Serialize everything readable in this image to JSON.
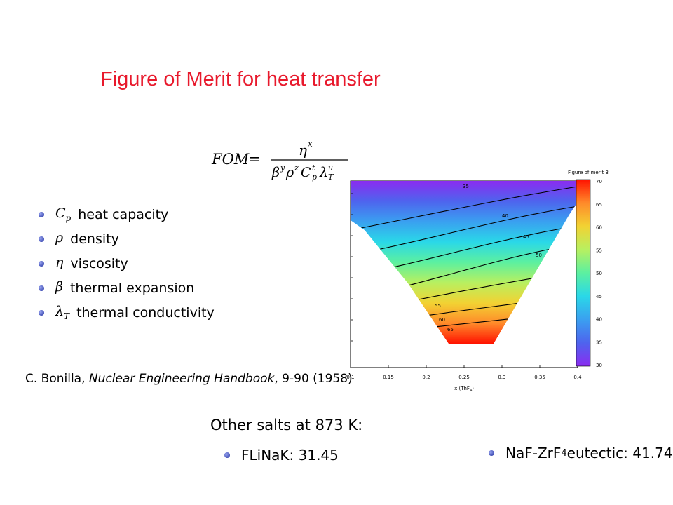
{
  "slide": {
    "title": "Figure of Merit for heat transfer"
  },
  "formula": {
    "lhs": "FOM",
    "numerator_base": "η",
    "numerator_exp": "x",
    "den_beta": "β",
    "den_beta_exp": "y",
    "den_rho": "ρ",
    "den_rho_exp": "z",
    "den_c": "C",
    "den_c_sub": "p",
    "den_c_exp": "t",
    "den_lambda": "λ",
    "den_lambda_sub": "T",
    "den_lambda_exp": "u"
  },
  "legend": [
    {
      "symbol": "C",
      "sub": "p",
      "label": "heat capacity"
    },
    {
      "symbol": "ρ",
      "sub": "",
      "label": "density"
    },
    {
      "symbol": "η",
      "sub": "",
      "label": "viscosity"
    },
    {
      "symbol": "β",
      "sub": "",
      "label": "thermal expansion"
    },
    {
      "symbol": "λ",
      "sub": "T",
      "label": "thermal conductivity"
    }
  ],
  "citation": {
    "author": "C. Bonilla, ",
    "book": "Nuclear Engineering Handbook",
    "pages": ", 9-90 (1958)"
  },
  "chart_data": {
    "type": "heatmap",
    "title": "",
    "xlabel": "x (ThF",
    "xlabel_sub": "4",
    "xlabel_end": ")",
    "xlim": [
      0.1,
      0.4
    ],
    "x_ticks": [
      "0.1",
      "0.15",
      "0.2",
      "0.25",
      "0.3",
      "0.35",
      "0.4"
    ],
    "colorbar_title": "Figure of merit 3",
    "colorbar_range": [
      30,
      70
    ],
    "colorbar_ticks": [
      "70",
      "65",
      "60",
      "55",
      "50",
      "45",
      "40",
      "35",
      "30"
    ],
    "colorbar_colors": [
      "#ff1200",
      "#ff8a2a",
      "#f2d233",
      "#b8f060",
      "#5cf0a0",
      "#2ad8e8",
      "#3aa0f0",
      "#4e64ee",
      "#8a2cf0"
    ],
    "contours": [
      {
        "value": 35,
        "label": "35"
      },
      {
        "value": 40,
        "label": "40"
      },
      {
        "value": 45,
        "label": "45"
      },
      {
        "value": 50,
        "label": "50"
      },
      {
        "value": 55,
        "label": "55"
      },
      {
        "value": 60,
        "label": "60"
      },
      {
        "value": 65,
        "label": "65"
      }
    ]
  },
  "other_salts": {
    "heading": "Other salts at 873 K:",
    "items": [
      {
        "name": "FLiNaK: 31.45",
        "sub": "",
        "rest": ""
      },
      {
        "name": "NaF-ZrF",
        "sub": "4",
        "rest": " eutectic: 41.74"
      }
    ]
  }
}
